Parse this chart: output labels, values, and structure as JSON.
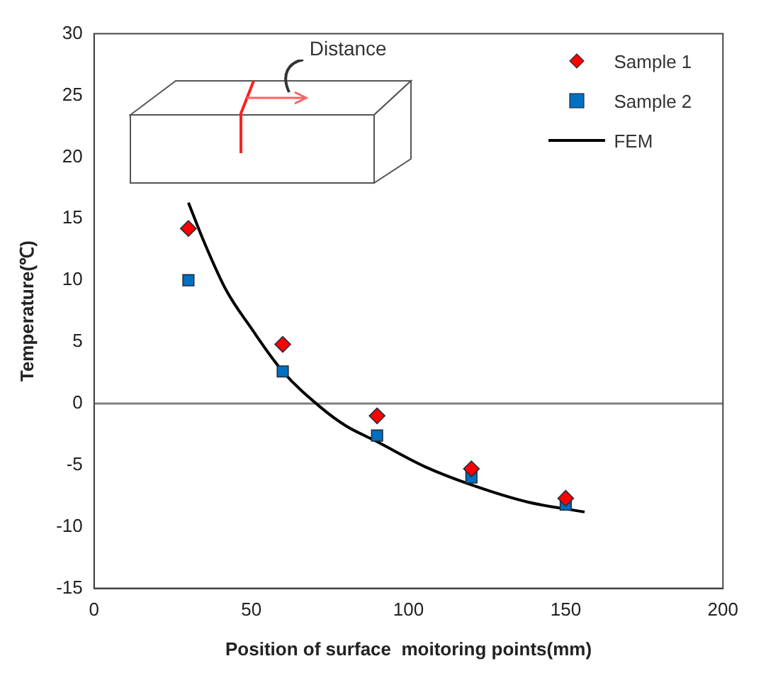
{
  "chart_data": {
    "type": "scatter",
    "xlabel": "Position of surface  moitoring points(mm)",
    "ylabel": "Temperature(℃)",
    "xlim": [
      0,
      200
    ],
    "xticks": [
      0,
      50,
      100,
      150,
      200
    ],
    "ylim": [
      -15,
      30
    ],
    "yticks": [
      -15,
      -10,
      -5,
      0,
      5,
      10,
      15,
      20,
      25,
      30
    ],
    "grid": false,
    "legend": "top right",
    "series": [
      {
        "name": "Sample 1",
        "color": "#ff0000",
        "marker": "diamond",
        "x": [
          30,
          60,
          90,
          120,
          150
        ],
        "values": [
          14.2,
          4.8,
          -1,
          -5.3,
          -7.7
        ]
      },
      {
        "name": "Sample 2",
        "color": "#0070c0",
        "marker": "square",
        "x": [
          30,
          60,
          90,
          120,
          150
        ],
        "values": [
          10,
          2.6,
          -2.6,
          -6,
          -8.2
        ]
      },
      {
        "name": "FEM",
        "type": "line",
        "color": "#000000",
        "marker": "none",
        "line_style": "solid",
        "x": [
          30,
          35,
          42,
          50,
          60,
          72,
          80,
          90,
          105,
          120,
          138,
          156
        ],
        "values": [
          16.3,
          13.1,
          9.2,
          6.1,
          2.6,
          -0.3,
          -1.8,
          -3.1,
          -5.1,
          -6.6,
          -8.0,
          -8.8
        ]
      }
    ],
    "ref_lines": [
      {
        "axis": "y",
        "value": 0,
        "color": "#808080"
      }
    ],
    "annotations": [
      "Distance"
    ]
  }
}
